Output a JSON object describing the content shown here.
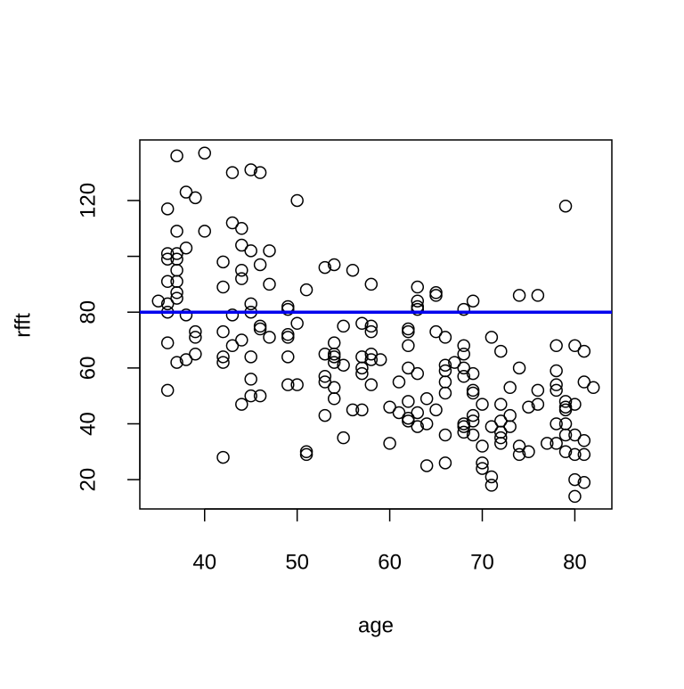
{
  "chart_data": {
    "type": "scatter",
    "x_label": "age",
    "y_label": "rfft",
    "xlim": [
      33,
      84
    ],
    "ylim": [
      9.5,
      141.7
    ],
    "xticks": [
      40,
      50,
      60,
      70,
      80
    ],
    "yticks": [
      20,
      40,
      60,
      80,
      100,
      120
    ],
    "hline": 80,
    "hline_color": "#0000ee",
    "color": "#000000",
    "series": [
      {
        "x": [
          35,
          36,
          36,
          36,
          36,
          36,
          36,
          36,
          36,
          37,
          37,
          37,
          37,
          37,
          37,
          37,
          37,
          37,
          38,
          38,
          38,
          38,
          39,
          39,
          39,
          39,
          40,
          40,
          42,
          42,
          42,
          42,
          42,
          42,
          43,
          43,
          43,
          43,
          44,
          44,
          44,
          44,
          44,
          44,
          45,
          45,
          45,
          45,
          45,
          45,
          45,
          46,
          46,
          46,
          46,
          46,
          47,
          47,
          47,
          49,
          49,
          49,
          49,
          49,
          49,
          50,
          50,
          50,
          51,
          51,
          51,
          53,
          53,
          53,
          53,
          53,
          54,
          54,
          54,
          54,
          54,
          54,
          54,
          55,
          55,
          55,
          56,
          56,
          57,
          57,
          57,
          57,
          57,
          58,
          58,
          58,
          58,
          58,
          58,
          59,
          60,
          60,
          61,
          61,
          62,
          62,
          62,
          62,
          62,
          62,
          62,
          63,
          63,
          63,
          63,
          63,
          63,
          63,
          64,
          64,
          64,
          65,
          65,
          65,
          65,
          66,
          66,
          66,
          66,
          66,
          66,
          66,
          67,
          68,
          68,
          68,
          68,
          68,
          68,
          68,
          68,
          69,
          69,
          69,
          69,
          69,
          69,
          69,
          70,
          70,
          70,
          70,
          71,
          71,
          71,
          71,
          72,
          72,
          72,
          72,
          72,
          72,
          73,
          73,
          73,
          74,
          74,
          74,
          74,
          75,
          75,
          76,
          76,
          76,
          77,
          78,
          78,
          78,
          78,
          78,
          78,
          79,
          79,
          79,
          79,
          79,
          79,
          79,
          80,
          80,
          80,
          80,
          80,
          80,
          81,
          81,
          81,
          81,
          81,
          82
        ],
        "values": [
          84,
          117,
          101,
          99,
          91,
          83,
          80,
          69,
          52,
          136,
          109,
          101,
          99,
          95,
          91,
          87,
          85,
          62,
          123,
          103,
          79,
          63,
          121,
          73,
          71,
          65,
          137,
          109,
          98,
          89,
          73,
          64,
          62,
          28,
          130,
          112,
          79,
          68,
          110,
          104,
          95,
          92,
          70,
          47,
          131,
          102,
          83,
          80,
          64,
          56,
          50,
          130,
          97,
          75,
          74,
          50,
          102,
          71,
          90,
          82,
          81,
          72,
          71,
          64,
          54,
          120,
          76,
          54,
          88,
          30,
          29,
          96,
          65,
          57,
          55,
          43,
          97,
          69,
          65,
          64,
          62,
          53,
          49,
          75,
          61,
          35,
          95,
          45,
          76,
          64,
          60,
          58,
          45,
          90,
          75,
          73,
          65,
          63,
          54,
          63,
          46,
          33,
          55,
          44,
          74,
          73,
          68,
          60,
          48,
          42,
          41,
          89,
          84,
          82,
          81,
          58,
          44,
          39,
          49,
          40,
          25,
          87,
          86,
          73,
          45,
          71,
          61,
          59,
          55,
          51,
          36,
          26,
          62,
          81,
          68,
          65,
          60,
          57,
          40,
          39,
          37,
          84,
          58,
          52,
          51,
          43,
          41,
          36,
          47,
          32,
          26,
          24,
          71,
          39,
          21,
          18,
          66,
          47,
          41,
          37,
          35,
          33,
          53,
          43,
          39,
          86,
          60,
          32,
          29,
          46,
          30,
          86,
          52,
          47,
          33,
          68,
          59,
          54,
          52,
          40,
          33,
          118,
          48,
          46,
          45,
          40,
          36,
          30,
          68,
          47,
          36,
          29,
          20,
          14,
          66,
          55,
          34,
          29,
          19,
          53
        ]
      }
    ]
  }
}
